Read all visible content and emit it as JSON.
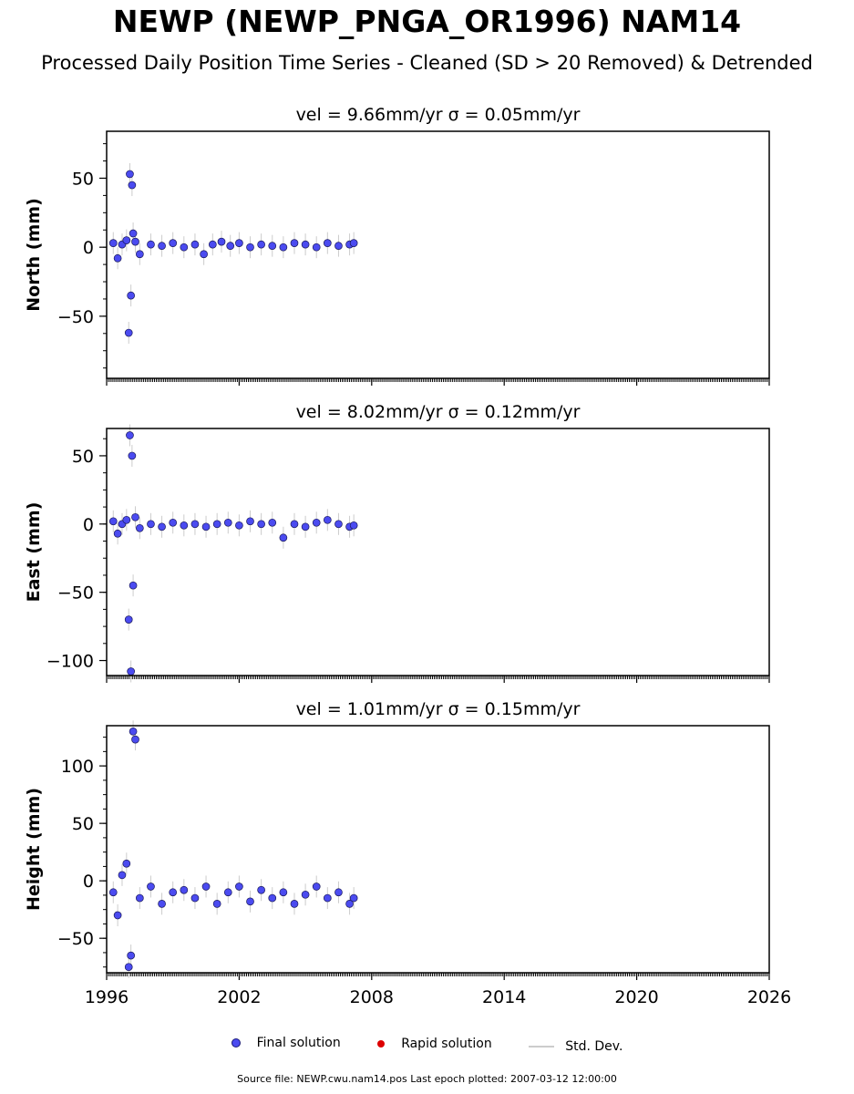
{
  "title": "NEWP (NEWP_PNGA_OR1996) NAM14",
  "subtitle": "Processed Daily Position Time Series - Cleaned (SD > 20 Removed) & Detrended",
  "legend": {
    "final_label": "Final solution",
    "rapid_label": "Rapid solution",
    "std_label": "Std. Dev.",
    "final_color": "#4b4bf0",
    "rapid_color": "#dd0000",
    "std_color": "#cccccc"
  },
  "footer": "Source file: NEWP.cwu.nam14.pos  Last epoch plotted: 2007-03-12 12:00:00",
  "chart_data": [
    {
      "type": "scatter",
      "title": "vel = 9.66mm/yr   σ = 0.05mm/yr",
      "ylabel": "North (mm)",
      "xlim": [
        1996,
        2026
      ],
      "ylim": [
        -95,
        84
      ],
      "yticks": [
        -50,
        0,
        50
      ],
      "xticks": [
        1996,
        2002,
        2008,
        2014,
        2020,
        2026
      ],
      "series": [
        {
          "x": [
            1996.3,
            1996.5,
            1996.7,
            1996.9,
            1997.0,
            1997.05,
            1997.1,
            1997.15,
            1997.2,
            1997.3,
            1997.5,
            1998.0,
            1998.5,
            1999.0,
            1999.5,
            2000.0,
            2000.4,
            2000.8,
            2001.2,
            2001.6,
            2002.0,
            2002.5,
            2003.0,
            2003.5,
            2004.0,
            2004.5,
            2005.0,
            2005.5,
            2006.0,
            2006.5,
            2007.0,
            2007.19
          ],
          "y": [
            3,
            -8,
            2,
            5,
            -62,
            53,
            -35,
            45,
            10,
            4,
            -5,
            2,
            1,
            3,
            0,
            2,
            -5,
            2,
            4,
            1,
            3,
            0,
            2,
            1,
            0,
            3,
            2,
            0,
            3,
            1,
            2,
            3
          ]
        }
      ]
    },
    {
      "type": "scatter",
      "title": "vel = 8.02mm/yr   σ = 0.12mm/yr",
      "ylabel": "East (mm)",
      "xlim": [
        1996,
        2026
      ],
      "ylim": [
        -111,
        70
      ],
      "yticks": [
        -100,
        -50,
        0,
        50
      ],
      "xticks": [
        1996,
        2002,
        2008,
        2014,
        2020,
        2026
      ],
      "series": [
        {
          "x": [
            1996.3,
            1996.5,
            1996.7,
            1996.9,
            1997.0,
            1997.05,
            1997.1,
            1997.15,
            1997.2,
            1997.3,
            1997.5,
            1998.0,
            1998.5,
            1999.0,
            1999.5,
            2000.0,
            2000.5,
            2001.0,
            2001.5,
            2002.0,
            2002.5,
            2003.0,
            2003.5,
            2004.0,
            2004.5,
            2005.0,
            2005.5,
            2006.0,
            2006.5,
            2007.0,
            2007.19
          ],
          "y": [
            2,
            -7,
            0,
            3,
            -70,
            65,
            -108,
            50,
            -45,
            5,
            -3,
            0,
            -2,
            1,
            -1,
            0,
            -2,
            0,
            1,
            -1,
            2,
            0,
            1,
            -10,
            0,
            -2,
            1,
            3,
            0,
            -2,
            -1
          ]
        }
      ]
    },
    {
      "type": "scatter",
      "title": "vel = 1.01mm/yr   σ = 0.15mm/yr",
      "ylabel": "Height (mm)",
      "xlim": [
        1996,
        2026
      ],
      "ylim": [
        -80,
        135
      ],
      "yticks": [
        -50,
        0,
        50,
        100
      ],
      "xticks": [
        1996,
        2002,
        2008,
        2014,
        2020,
        2026
      ],
      "series": [
        {
          "x": [
            1996.3,
            1996.5,
            1996.7,
            1996.9,
            1997.0,
            1997.1,
            1997.2,
            1997.3,
            1997.5,
            1998.0,
            1998.5,
            1999.0,
            1999.5,
            2000.0,
            2000.5,
            2001.0,
            2001.5,
            2002.0,
            2002.5,
            2003.0,
            2003.5,
            2004.0,
            2004.5,
            2005.0,
            2005.5,
            2006.0,
            2006.5,
            2007.0,
            2007.19
          ],
          "y": [
            -10,
            -30,
            5,
            15,
            -75,
            -65,
            130,
            123,
            -15,
            -5,
            -20,
            -10,
            -8,
            -15,
            -5,
            -20,
            -10,
            -5,
            -18,
            -8,
            -15,
            -10,
            -20,
            -12,
            -5,
            -15,
            -10,
            -20,
            -15
          ]
        }
      ]
    }
  ]
}
